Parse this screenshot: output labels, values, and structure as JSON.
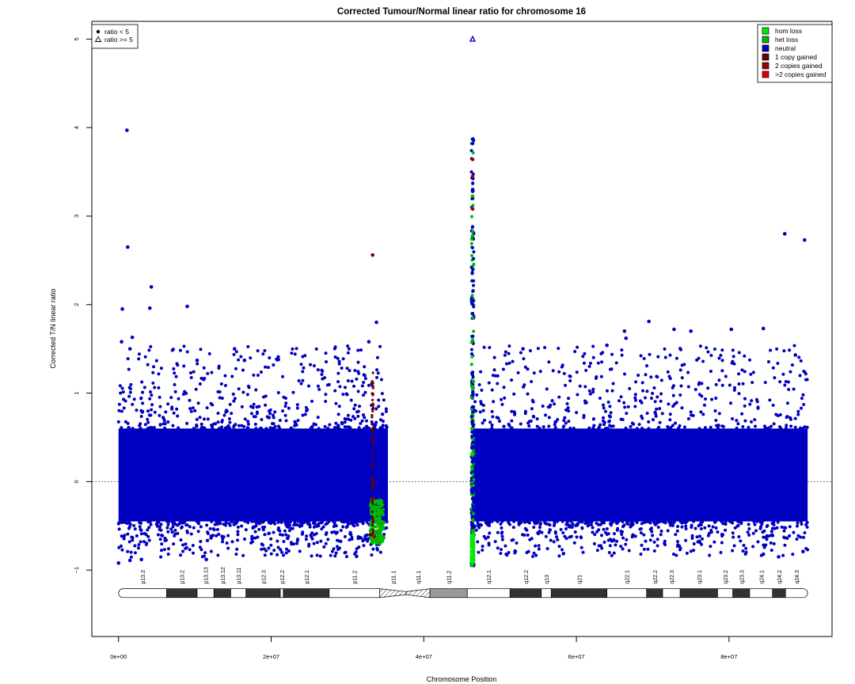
{
  "chart_data": {
    "type": "scatter",
    "title": "Corrected Tumour/Normal linear ratio for chromosome  16",
    "xlabel": "Chromosome Position",
    "ylabel": "Corrected T/N linear ratio",
    "xlim": [
      -3500000,
      93500000
    ],
    "ylim": [
      -1.75,
      5.2
    ],
    "x_ticks": [
      {
        "value": 0,
        "label": "0e+00"
      },
      {
        "value": 20000000,
        "label": "2e+07"
      },
      {
        "value": 40000000,
        "label": "4e+07"
      },
      {
        "value": 60000000,
        "label": "6e+07"
      },
      {
        "value": 80000000,
        "label": "8e+07"
      }
    ],
    "y_ticks": [
      {
        "value": -1,
        "label": "−1"
      },
      {
        "value": 0,
        "label": "0"
      },
      {
        "value": 1,
        "label": "1"
      },
      {
        "value": 2,
        "label": "2"
      },
      {
        "value": 3,
        "label": "3"
      },
      {
        "value": 4,
        "label": "4"
      },
      {
        "value": 5,
        "label": "5"
      }
    ],
    "reference_line": 0,
    "colors": {
      "hom_loss": "#00ee00",
      "het_loss": "#00b800",
      "neutral": "#0000c0",
      "gain1": "#6b0000",
      "gain2": "#a00000",
      "gain_more": "#e00000"
    },
    "shape_legend": {
      "position": "top-left",
      "items": [
        {
          "label": "ratio < 5",
          "shape": "dot"
        },
        {
          "label": "ratio >= 5",
          "shape": "triangle"
        }
      ]
    },
    "color_legend": {
      "position": "top-right",
      "items": [
        {
          "label": "hom loss",
          "color_key": "hom_loss"
        },
        {
          "label": "het loss",
          "color_key": "het_loss"
        },
        {
          "label": "neutral",
          "color_key": "neutral"
        },
        {
          "label": "1 copy gained",
          "color_key": "gain1"
        },
        {
          "label": "2 copies gained",
          "color_key": "gain2"
        },
        {
          "label": ">2 copies gained",
          "color_key": "gain_more"
        }
      ]
    },
    "dense_regions": [
      {
        "x_range": [
          0,
          35300000
        ],
        "y_range": [
          -0.45,
          0.6
        ],
        "status": "neutral"
      },
      {
        "x_range": [
          46400000,
          90300000
        ],
        "y_range": [
          -0.45,
          0.6
        ],
        "status": "neutral"
      }
    ],
    "loss_cluster": {
      "x_range": [
        33000000,
        34800000
      ],
      "y_range": [
        -0.7,
        -0.2
      ],
      "status": "het_loss"
    },
    "gain_line": {
      "x": 33300000,
      "y_range": [
        -0.65,
        1.25
      ],
      "status": "gain1"
    },
    "centromere_spike": {
      "x": 46400000,
      "y_range": [
        -0.95,
        3.9
      ],
      "status": "het_loss"
    },
    "points": [
      {
        "x": 500000,
        "y": 1.95,
        "status": "neutral"
      },
      {
        "x": 1100000,
        "y": 3.97,
        "status": "neutral"
      },
      {
        "x": 1200000,
        "y": 2.65,
        "status": "neutral"
      },
      {
        "x": 1800000,
        "y": 1.63,
        "status": "neutral"
      },
      {
        "x": 400000,
        "y": 1.58,
        "status": "neutral"
      },
      {
        "x": 1500000,
        "y": 1.5,
        "status": "neutral"
      },
      {
        "x": 4300000,
        "y": 2.2,
        "status": "neutral"
      },
      {
        "x": 4100000,
        "y": 1.96,
        "status": "neutral"
      },
      {
        "x": 9000000,
        "y": 1.98,
        "status": "neutral"
      },
      {
        "x": 15200000,
        "y": 1.5,
        "status": "neutral"
      },
      {
        "x": 10300000,
        "y": 1.37,
        "status": "neutral"
      },
      {
        "x": 16500000,
        "y": 1.37,
        "status": "neutral"
      },
      {
        "x": 33300000,
        "y": 2.56,
        "status": "gain1"
      },
      {
        "x": 33800000,
        "y": 1.8,
        "status": "neutral"
      },
      {
        "x": 32800000,
        "y": 1.58,
        "status": "neutral"
      },
      {
        "x": 46400000,
        "y": 3.87,
        "status": "neutral"
      },
      {
        "x": 46400000,
        "y": 3.82,
        "status": "neutral"
      },
      {
        "x": 46400000,
        "y": 3.64,
        "status": "gain2"
      },
      {
        "x": 46400000,
        "y": 3.45,
        "status": "gain2"
      },
      {
        "x": 46400000,
        "y": 3.3,
        "status": "neutral"
      },
      {
        "x": 46400000,
        "y": 3.28,
        "status": "neutral"
      },
      {
        "x": 46400000,
        "y": 3.08,
        "status": "gain2"
      },
      {
        "x": 46400000,
        "y": 2.78,
        "status": "het_loss"
      },
      {
        "x": 53000000,
        "y": 1.5,
        "status": "neutral"
      },
      {
        "x": 66300000,
        "y": 1.7,
        "status": "neutral"
      },
      {
        "x": 66500000,
        "y": 1.62,
        "status": "neutral"
      },
      {
        "x": 69500000,
        "y": 1.81,
        "status": "neutral"
      },
      {
        "x": 72800000,
        "y": 1.72,
        "status": "neutral"
      },
      {
        "x": 75000000,
        "y": 1.7,
        "status": "neutral"
      },
      {
        "x": 80300000,
        "y": 1.72,
        "status": "neutral"
      },
      {
        "x": 84500000,
        "y": 1.73,
        "status": "neutral"
      },
      {
        "x": 64000000,
        "y": 1.54,
        "status": "neutral"
      },
      {
        "x": 87300000,
        "y": 2.8,
        "status": "neutral"
      },
      {
        "x": 89900000,
        "y": 2.73,
        "status": "neutral"
      },
      {
        "x": 88700000,
        "y": 1.43,
        "status": "neutral"
      },
      {
        "x": 0,
        "y": -0.92,
        "status": "neutral"
      },
      {
        "x": 1500000,
        "y": -0.89,
        "status": "neutral"
      },
      {
        "x": 3000000,
        "y": -0.88,
        "status": "neutral"
      },
      {
        "x": 11500000,
        "y": -0.88,
        "status": "neutral"
      },
      {
        "x": 84500000,
        "y": -0.82,
        "status": "neutral"
      },
      {
        "x": 86500000,
        "y": -0.85,
        "status": "neutral"
      },
      {
        "x": 89700000,
        "y": -0.79,
        "status": "neutral"
      },
      {
        "x": 33000000,
        "y": -0.6,
        "status": "gain1"
      },
      {
        "x": 33500000,
        "y": -0.62,
        "status": "gain2"
      }
    ],
    "outliers": [
      {
        "x": 46400000,
        "y": 5.0,
        "status": "neutral",
        "shape": "triangle"
      }
    ],
    "ideogram": {
      "y_center": -1.26,
      "height": 0.1,
      "bands": [
        {
          "name": "p13.3",
          "start": 0,
          "end": 6300000,
          "stain": "gneg"
        },
        {
          "name": "p13.2",
          "start": 6300000,
          "end": 10300000,
          "stain": "gpos"
        },
        {
          "name": "p13.13",
          "start": 10300000,
          "end": 12500000,
          "stain": "gneg"
        },
        {
          "name": "p13.12",
          "start": 12500000,
          "end": 14700000,
          "stain": "gpos"
        },
        {
          "name": "p13.11",
          "start": 14700000,
          "end": 16700000,
          "stain": "gneg"
        },
        {
          "name": "p12.3",
          "start": 16700000,
          "end": 21200000,
          "stain": "gpos"
        },
        {
          "name": "p12.2",
          "start": 21200000,
          "end": 21600000,
          "stain": "gneg"
        },
        {
          "name": "p12.1",
          "start": 21600000,
          "end": 27600000,
          "stain": "gpos"
        },
        {
          "name": "p11.2",
          "start": 27600000,
          "end": 34200000,
          "stain": "gneg"
        },
        {
          "name": "p11.1",
          "start": 34200000,
          "end": 37700000,
          "stain": "stalk"
        },
        {
          "name": "q11.1",
          "start": 37700000,
          "end": 40800000,
          "stain": "stalk"
        },
        {
          "name": "q11.2",
          "start": 40800000,
          "end": 45700000,
          "stain": "gvar"
        },
        {
          "name": "q12.1",
          "start": 45700000,
          "end": 51300000,
          "stain": "gneg"
        },
        {
          "name": "q12.2",
          "start": 51300000,
          "end": 55400000,
          "stain": "gpos"
        },
        {
          "name": "q13",
          "start": 55400000,
          "end": 56700000,
          "stain": "gneg"
        },
        {
          "name": "q21",
          "start": 56700000,
          "end": 64000000,
          "stain": "gpos"
        },
        {
          "name": "q22.1",
          "start": 64000000,
          "end": 69200000,
          "stain": "gneg"
        },
        {
          "name": "q22.2",
          "start": 69200000,
          "end": 71300000,
          "stain": "gpos"
        },
        {
          "name": "q22.3",
          "start": 71300000,
          "end": 73600000,
          "stain": "gneg"
        },
        {
          "name": "q23.1",
          "start": 73600000,
          "end": 78500000,
          "stain": "gpos"
        },
        {
          "name": "q23.2",
          "start": 78500000,
          "end": 80500000,
          "stain": "gneg"
        },
        {
          "name": "q23.3",
          "start": 80500000,
          "end": 82700000,
          "stain": "gpos"
        },
        {
          "name": "q24.1",
          "start": 82700000,
          "end": 85700000,
          "stain": "gneg"
        },
        {
          "name": "q24.2",
          "start": 85700000,
          "end": 87400000,
          "stain": "gpos"
        },
        {
          "name": "q24.3",
          "start": 87400000,
          "end": 90300000,
          "stain": "gneg"
        }
      ]
    }
  }
}
